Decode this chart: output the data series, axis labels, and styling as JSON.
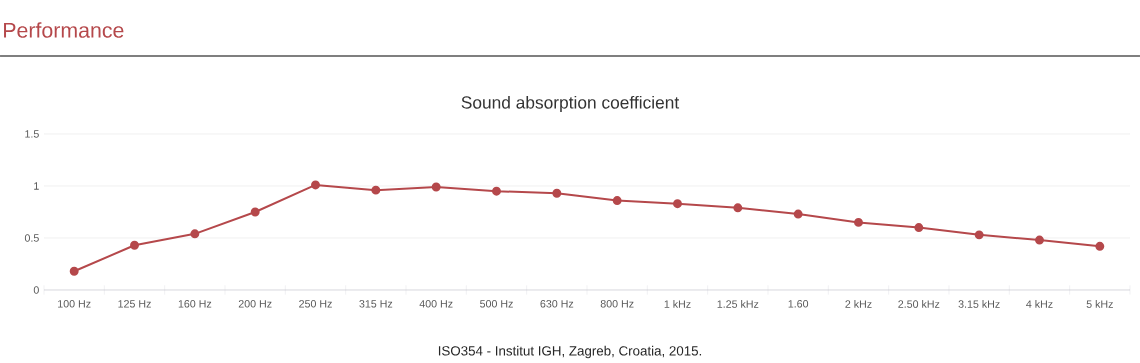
{
  "chart_data": {
    "type": "line",
    "title": "Performance",
    "subtitle": "Sound absorption coefficient",
    "categories": [
      "100 Hz",
      "125 Hz",
      "160 Hz",
      "200 Hz",
      "250 Hz",
      "315 Hz",
      "400 Hz",
      "500 Hz",
      "630 Hz",
      "800 Hz",
      "1 kHz",
      "1.25 kHz",
      "1.60",
      "2 kHz",
      "2.50 kHz",
      "3.15 kHz",
      "4 kHz",
      "5 kHz"
    ],
    "values": [
      0.18,
      0.43,
      0.54,
      0.75,
      1.01,
      0.96,
      0.99,
      0.95,
      0.93,
      0.86,
      0.83,
      0.79,
      0.73,
      0.65,
      0.6,
      0.53,
      0.48,
      0.42
    ],
    "color": "#b5484b",
    "ylim": [
      0,
      1.5
    ],
    "yticks": [
      0,
      0.5,
      1,
      1.5
    ],
    "grid": "y",
    "marker": "circle",
    "line_style": "solid",
    "annotations": [
      "ISO354 - Institut IGH, Zagreb, Croatia, 2015."
    ]
  }
}
